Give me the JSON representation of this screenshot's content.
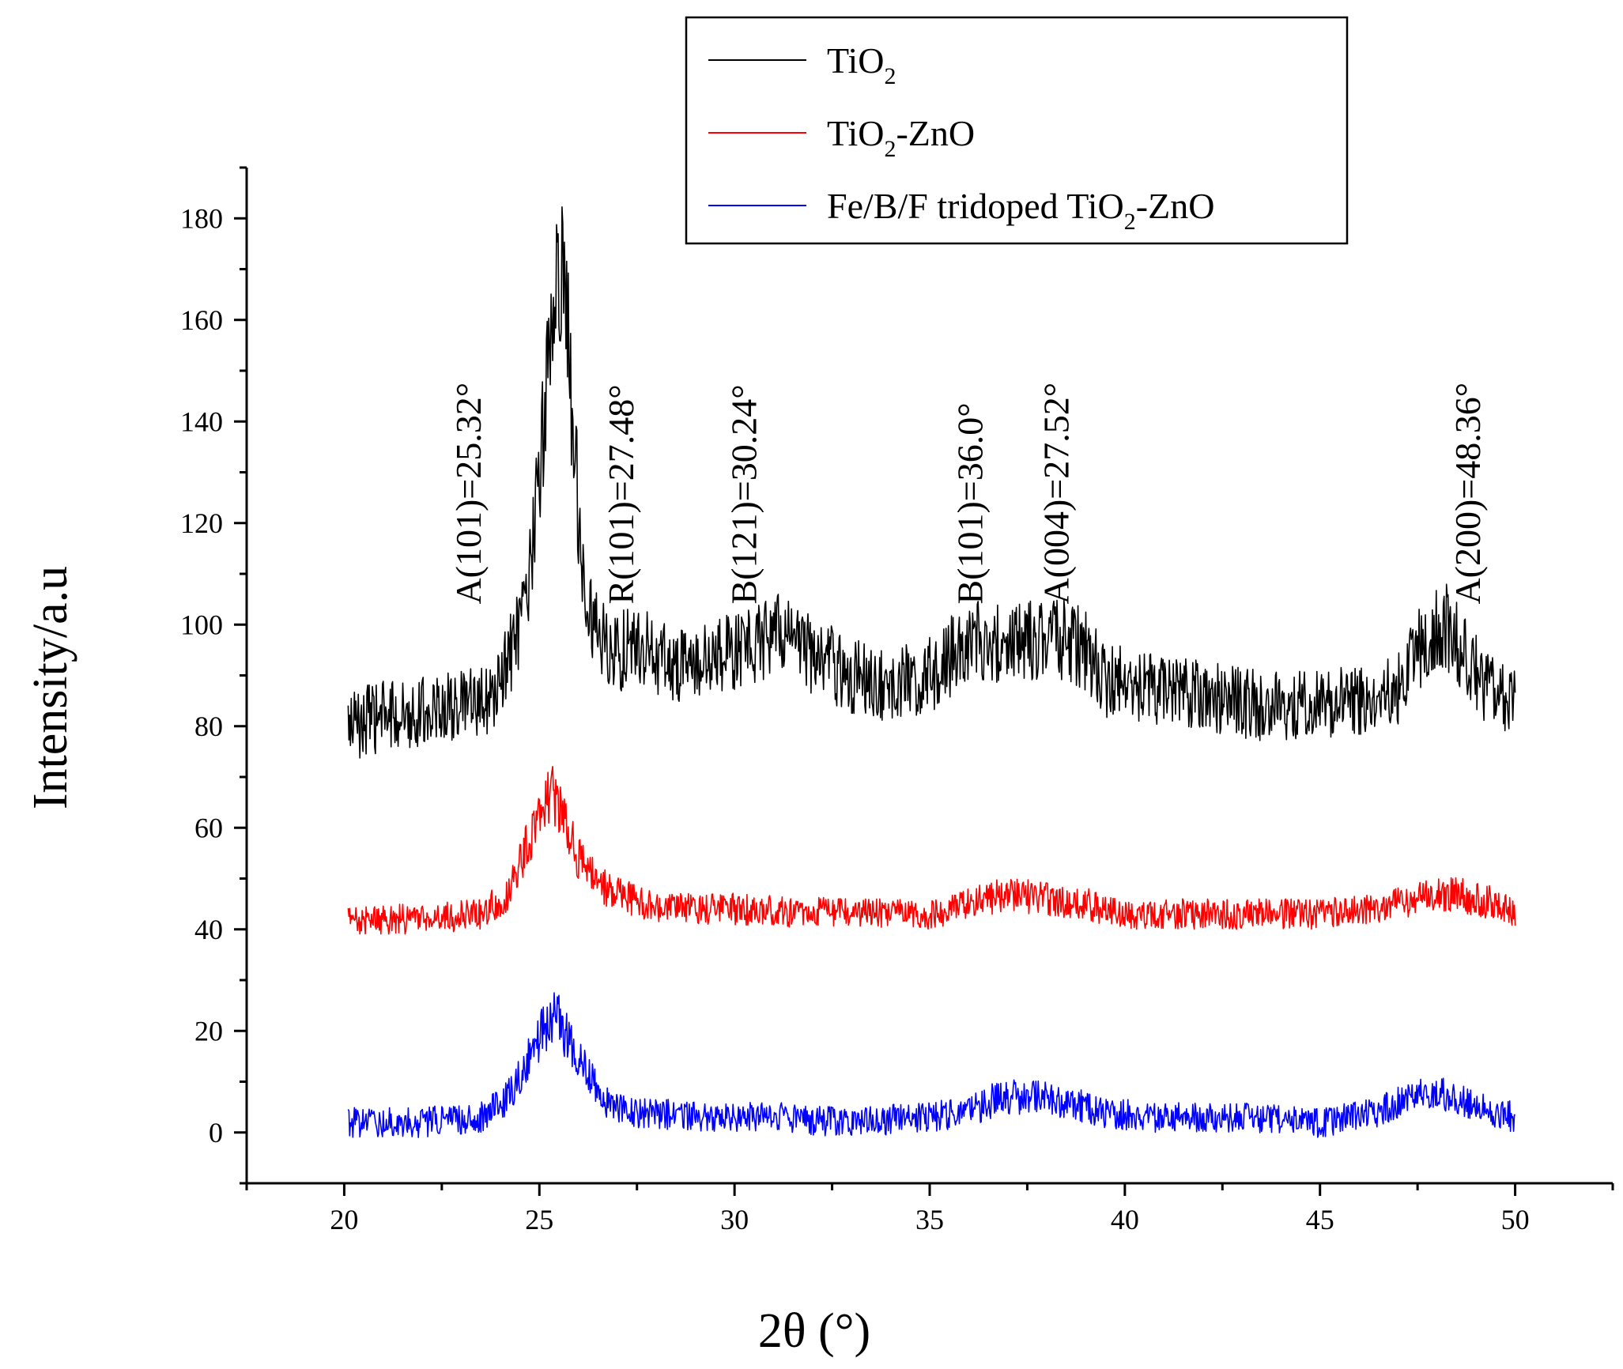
{
  "chart_data": {
    "type": "line",
    "title": "",
    "xlabel": "2θ (°)",
    "ylabel": "Intensity/a.u",
    "xlim": [
      17.5,
      52.5
    ],
    "ylim": [
      -10,
      190
    ],
    "x_ticks": [
      20,
      25,
      30,
      35,
      40,
      45,
      50
    ],
    "y_ticks": [
      0,
      20,
      40,
      60,
      80,
      100,
      120,
      140,
      160,
      180
    ],
    "x_tick_labels": [
      "20",
      "25",
      "30",
      "35",
      "40",
      "45",
      "50"
    ],
    "y_tick_labels": [
      "0",
      "20",
      "40",
      "60",
      "80",
      "100",
      "120",
      "140",
      "160",
      "180"
    ],
    "legend": {
      "position": "top-right"
    },
    "series": [
      {
        "name": "TiO2",
        "legend_text": "TiO",
        "legend_sub": "2",
        "legend_suffix": "",
        "color": "#000000",
        "baseline": 86,
        "noise": 7,
        "points": [
          [
            20.1,
            80
          ],
          [
            21,
            82
          ],
          [
            22,
            83
          ],
          [
            23,
            84
          ],
          [
            23.8,
            85
          ],
          [
            24.3,
            95
          ],
          [
            24.7,
            104
          ],
          [
            25,
            130
          ],
          [
            25.3,
            158
          ],
          [
            25.5,
            172
          ],
          [
            25.7,
            160
          ],
          [
            25.9,
            135
          ],
          [
            26.1,
            112
          ],
          [
            26.4,
            100
          ],
          [
            26.8,
            94
          ],
          [
            27.5,
            96
          ],
          [
            28.5,
            92
          ],
          [
            29.5,
            93
          ],
          [
            30.5,
            96
          ],
          [
            31.3,
            99
          ],
          [
            32,
            94
          ],
          [
            33,
            90
          ],
          [
            34,
            88
          ],
          [
            35,
            90
          ],
          [
            36,
            97
          ],
          [
            37,
            96
          ],
          [
            38,
            98
          ],
          [
            39,
            95
          ],
          [
            39.5,
            89
          ],
          [
            40.5,
            88
          ],
          [
            42,
            86
          ],
          [
            43.5,
            84
          ],
          [
            45,
            84
          ],
          [
            46,
            85
          ],
          [
            47,
            87
          ],
          [
            47.5,
            95
          ],
          [
            48.2,
            100
          ],
          [
            48.7,
            94
          ],
          [
            49.2,
            88
          ],
          [
            50,
            84
          ]
        ]
      },
      {
        "name": "TiO2-ZnO",
        "legend_text": "TiO",
        "legend_sub": "2",
        "legend_suffix": "-ZnO",
        "color": "#ff0000",
        "baseline": 43,
        "noise": 3,
        "points": [
          [
            20.1,
            42
          ],
          [
            22,
            42
          ],
          [
            23.5,
            43
          ],
          [
            24.2,
            47
          ],
          [
            24.6,
            55
          ],
          [
            25,
            62
          ],
          [
            25.3,
            68
          ],
          [
            25.6,
            62
          ],
          [
            26,
            54
          ],
          [
            26.5,
            49
          ],
          [
            27,
            47
          ],
          [
            28,
            44
          ],
          [
            30,
            44
          ],
          [
            33,
            43
          ],
          [
            35,
            43
          ],
          [
            36,
            45
          ],
          [
            37,
            47
          ],
          [
            38,
            46
          ],
          [
            39,
            45
          ],
          [
            40,
            43
          ],
          [
            43,
            43
          ],
          [
            45,
            43
          ],
          [
            46.5,
            44
          ],
          [
            47.5,
            46
          ],
          [
            48.5,
            47
          ],
          [
            49.5,
            45
          ],
          [
            50,
            43
          ]
        ]
      },
      {
        "name": "Fe/B/F tridoped TiO2-ZnO",
        "legend_text": "Fe/B/F tridoped TiO",
        "legend_sub": "2",
        "legend_suffix": "-ZnO",
        "color": "#0000ff",
        "baseline": 3,
        "noise": 3,
        "points": [
          [
            20.1,
            2
          ],
          [
            22,
            2
          ],
          [
            23.5,
            3
          ],
          [
            24.2,
            7
          ],
          [
            24.7,
            14
          ],
          [
            25.1,
            20
          ],
          [
            25.4,
            23
          ],
          [
            25.8,
            18
          ],
          [
            26.2,
            13
          ],
          [
            26.6,
            6
          ],
          [
            27.5,
            4
          ],
          [
            29,
            3
          ],
          [
            31,
            3
          ],
          [
            33,
            2
          ],
          [
            35,
            3
          ],
          [
            36,
            4
          ],
          [
            36.8,
            7
          ],
          [
            37.5,
            7
          ],
          [
            38.5,
            6
          ],
          [
            39.5,
            4
          ],
          [
            40.5,
            3
          ],
          [
            43,
            3
          ],
          [
            45,
            2
          ],
          [
            46.5,
            4
          ],
          [
            47.5,
            8
          ],
          [
            48.3,
            7
          ],
          [
            49,
            5
          ],
          [
            50,
            3
          ]
        ]
      }
    ],
    "annotations": [
      {
        "text": "A(101)=25.32°",
        "x": 23.5
      },
      {
        "text": "R(101)=27.48°",
        "x": 27.4
      },
      {
        "text": "B(121)=30.24°",
        "x": 30.55
      },
      {
        "text": "B(101)=36.0°",
        "x": 36.35
      },
      {
        "text": "A(004)=27.52°",
        "x": 38.55
      },
      {
        "text": "A(200)=48.36°",
        "x": 49.1
      }
    ]
  }
}
